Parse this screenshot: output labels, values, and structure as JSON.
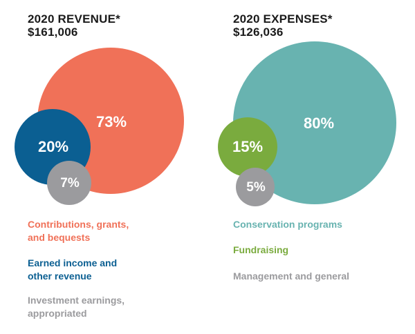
{
  "chart_data": [
    {
      "type": "bubble",
      "title": "2020 REVENUE*",
      "subtitle": "$161,006",
      "values": [
        {
          "label": "Contributions, grants, and bequests",
          "value": 73,
          "display": "73%",
          "color": "#f07158"
        },
        {
          "label": "Earned income and other revenue",
          "value": 20,
          "display": "20%",
          "color": "#0b5f92"
        },
        {
          "label": "Investment earnings, appropriated",
          "value": 7,
          "display": "7%",
          "color": "#9b9b9e"
        }
      ],
      "legend_lines": [
        [
          "Contributions, grants,",
          "and bequests"
        ],
        [
          "Earned income and",
          "other revenue"
        ],
        [
          "Investment earnings,",
          "appropriated"
        ]
      ]
    },
    {
      "type": "bubble",
      "title": "2020 EXPENSES*",
      "subtitle": "$126,036",
      "values": [
        {
          "label": "Conservation programs",
          "value": 80,
          "display": "80%",
          "color": "#68b3b0"
        },
        {
          "label": "Fundraising",
          "value": 15,
          "display": "15%",
          "color": "#7aab3e"
        },
        {
          "label": "Management and general",
          "value": 5,
          "display": "5%",
          "color": "#9b9b9e"
        }
      ],
      "legend_lines": [
        [
          "Conservation programs"
        ],
        [
          "Fundraising"
        ],
        [
          "Management and general"
        ]
      ]
    }
  ]
}
